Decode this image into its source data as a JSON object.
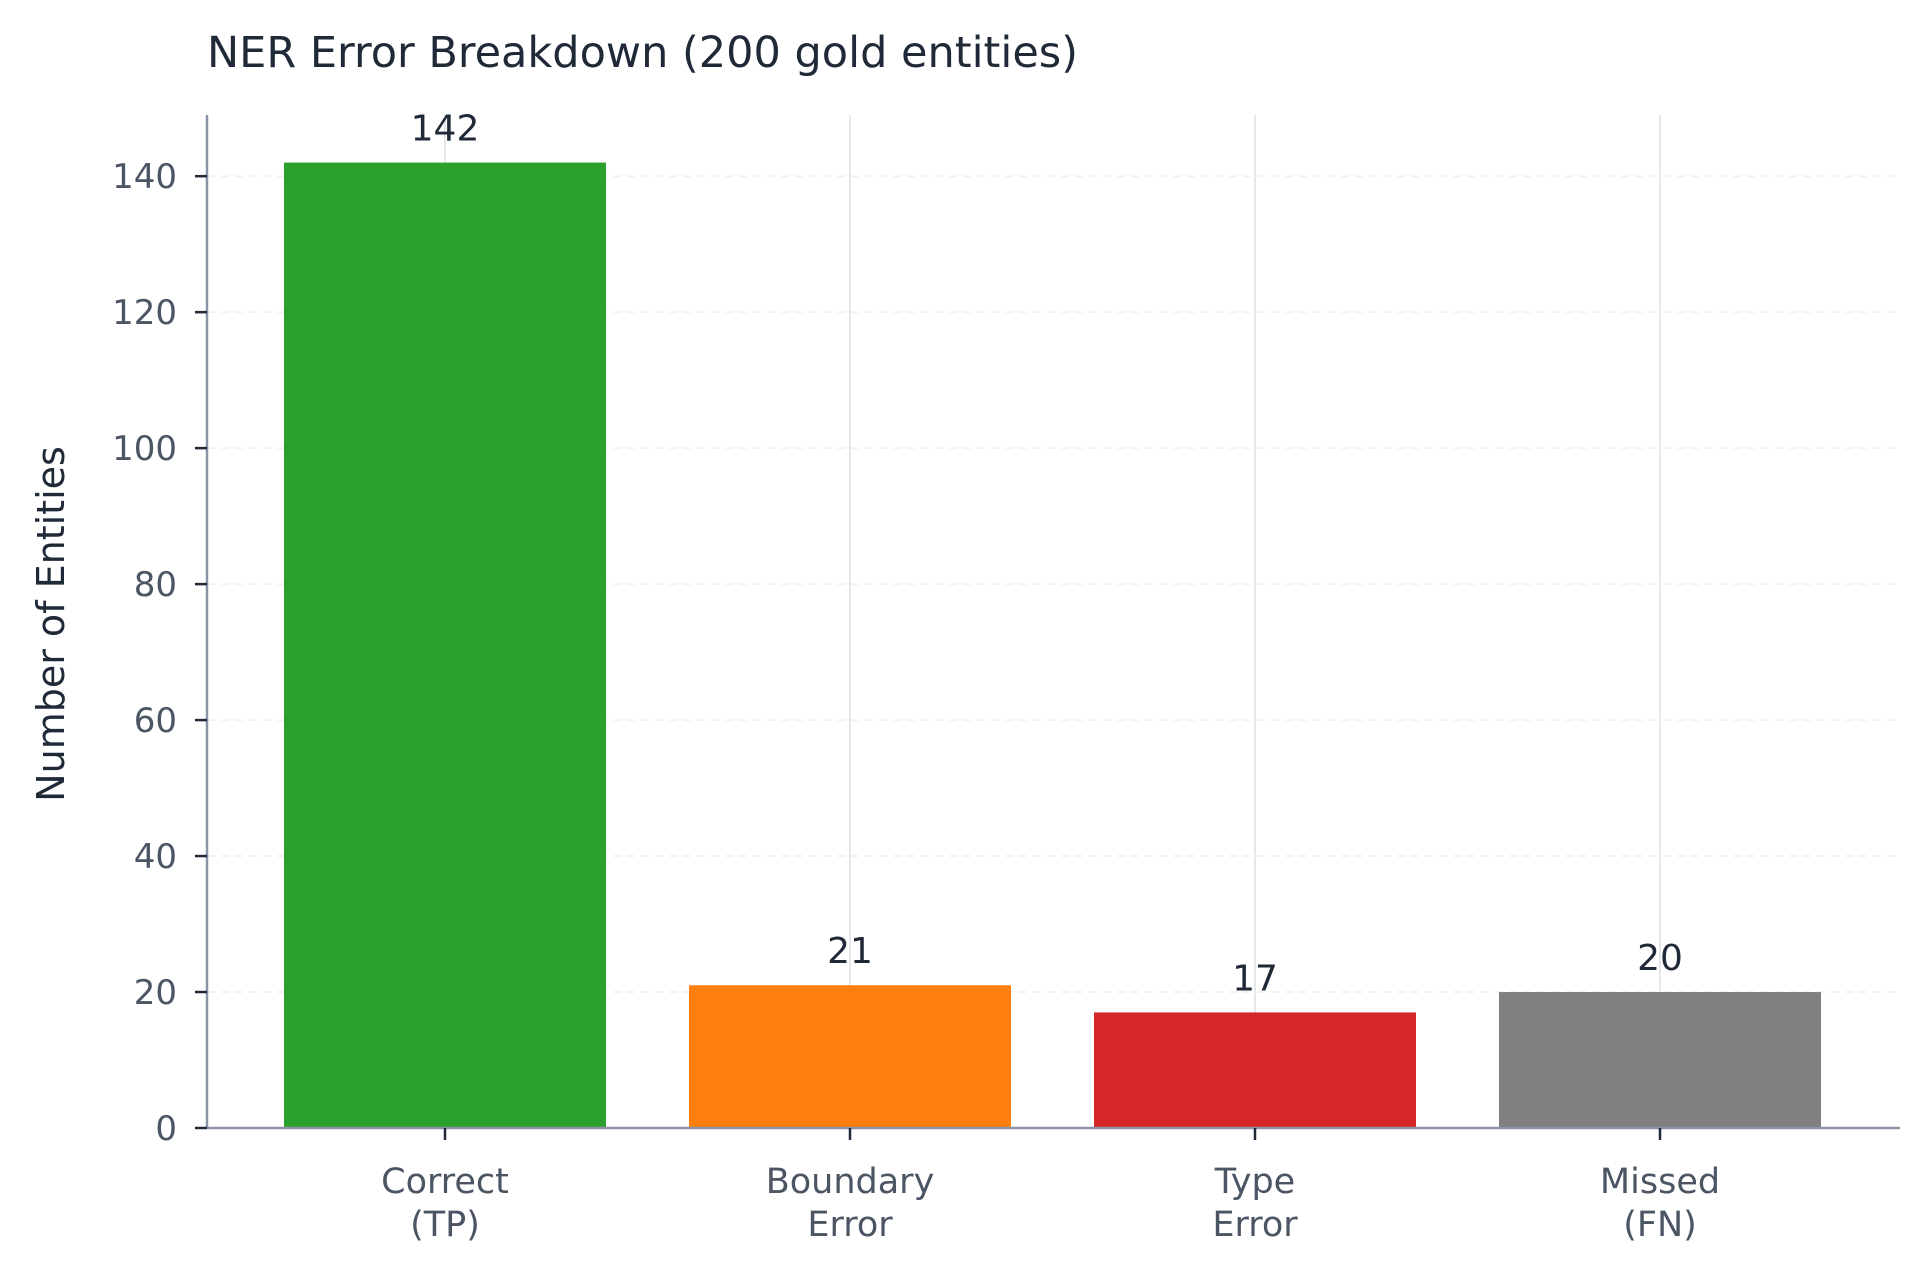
{
  "chart_data": {
    "type": "bar",
    "title": "NER Error Breakdown (200 gold entities)",
    "xlabel": "",
    "ylabel": "Number of Entities",
    "categories": [
      "Correct\n(TP)",
      "Boundary\nError",
      "Type\nError",
      "Missed\n(FN)"
    ],
    "values": [
      142,
      21,
      17,
      20
    ],
    "data_labels": [
      "142",
      "21",
      "17",
      "20"
    ],
    "colors": [
      "#2ca02c",
      "#ff7f0e",
      "#d62728",
      "#808080"
    ],
    "ylim": [
      0,
      149
    ],
    "yticks": [
      0,
      20,
      40,
      60,
      80,
      100,
      120,
      140
    ],
    "grid": true,
    "legend": "none"
  }
}
